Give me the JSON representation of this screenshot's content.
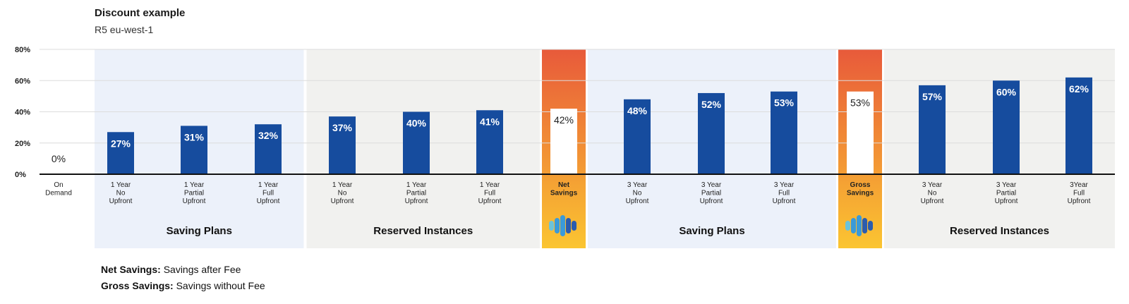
{
  "header": {
    "title": "Discount example",
    "subtitle": "R5 eu-west-1"
  },
  "notes": [
    {
      "term": "Net Savings:",
      "text": " Savings after Fee"
    },
    {
      "term": "Gross Savings:",
      "text": " Savings without Fee"
    }
  ],
  "colors": {
    "bar": "#164c9e",
    "highlight_top": "#e85a3a",
    "highlight_bottom": "#fbc531",
    "saving_plans_bg": "#ecf1fa",
    "reserved_bg": "#f1f1ef",
    "axis": "#111111",
    "logo": [
      "#6cc3d9",
      "#3a9ad9",
      "#2b5cae"
    ]
  },
  "chart_data": {
    "type": "bar",
    "title": "Discount example",
    "subtitle": "R5 eu-west-1",
    "ylim": [
      0,
      80
    ],
    "yticks": [
      0,
      20,
      40,
      60,
      80
    ],
    "ytick_labels": [
      "0%",
      "20%",
      "40%",
      "60%",
      "80%"
    ],
    "grid": true,
    "categories": [
      [
        "On",
        "Demand"
      ],
      [
        "1 Year",
        "No",
        "Upfront"
      ],
      [
        "1 Year",
        "Partial",
        "Upfront"
      ],
      [
        "1 Year",
        "Full",
        "Upfront"
      ],
      [
        "1 Year",
        "No",
        "Upfront"
      ],
      [
        "1 Year",
        "Partial",
        "Upfront"
      ],
      [
        "1 Year",
        "Full",
        "Upfront"
      ],
      [
        "Net",
        "Savings"
      ],
      [
        "3 Year",
        "No",
        "Upfront"
      ],
      [
        "3 Year",
        "Partial",
        "Upfront"
      ],
      [
        "3 Year",
        "Full",
        "Upfront"
      ],
      [
        "Gross",
        "Savings"
      ],
      [
        "3 Year",
        "No",
        "Upfront"
      ],
      [
        "3 Year",
        "Partial",
        "Upfront"
      ],
      [
        "3Year",
        "Full",
        "Upfront"
      ]
    ],
    "values": [
      0,
      27,
      31,
      32,
      37,
      40,
      41,
      42,
      48,
      52,
      53,
      53,
      57,
      60,
      62
    ],
    "value_labels": [
      "0%",
      "27%",
      "31%",
      "32%",
      "37%",
      "40%",
      "41%",
      "42%",
      "48%",
      "52%",
      "53%",
      "53%",
      "57%",
      "60%",
      "62%"
    ],
    "highlighted": [
      7,
      11
    ],
    "groups": [
      {
        "label": "Saving Plans",
        "start": 1,
        "end": 3,
        "style": "saving"
      },
      {
        "label": "Reserved Instances",
        "start": 4,
        "end": 6,
        "style": "reserved"
      },
      {
        "label": "",
        "start": 7,
        "end": 7,
        "style": "highlight"
      },
      {
        "label": "Saving Plans",
        "start": 8,
        "end": 10,
        "style": "saving"
      },
      {
        "label": "",
        "start": 11,
        "end": 11,
        "style": "highlight"
      },
      {
        "label": "Reserved Instances",
        "start": 12,
        "end": 14,
        "style": "reserved"
      }
    ]
  }
}
